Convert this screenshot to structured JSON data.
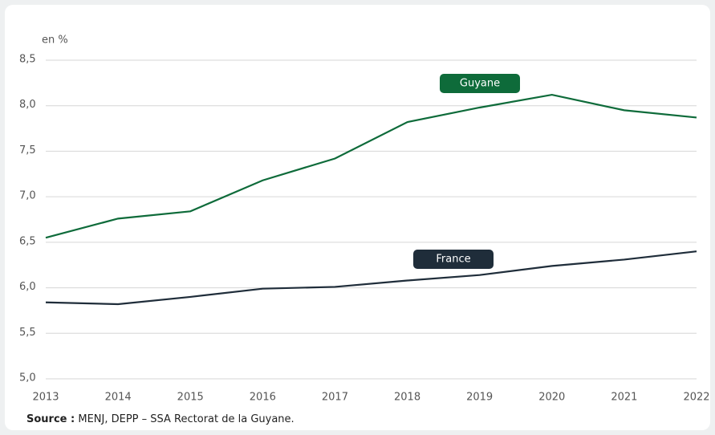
{
  "chart_data": {
    "type": "line",
    "y_axis_label": "en %",
    "x": [
      2013,
      2014,
      2015,
      2016,
      2017,
      2018,
      2019,
      2020,
      2021,
      2022
    ],
    "xlim": [
      2013,
      2022
    ],
    "xticks": [
      2013,
      2014,
      2015,
      2016,
      2017,
      2018,
      2019,
      2020,
      2021,
      2022
    ],
    "ylim": [
      5.0,
      8.5
    ],
    "yticks": [
      {
        "value": 5.0,
        "label": "5,0"
      },
      {
        "value": 5.5,
        "label": "5,5"
      },
      {
        "value": 6.0,
        "label": "6,0"
      },
      {
        "value": 6.5,
        "label": "6,5"
      },
      {
        "value": 7.0,
        "label": "7,0"
      },
      {
        "value": 7.5,
        "label": "7,5"
      },
      {
        "value": 8.0,
        "label": "8,0"
      },
      {
        "value": 8.5,
        "label": "8,5"
      }
    ],
    "grid": true,
    "series": [
      {
        "name": "Guyane",
        "color": "#0e6b3a",
        "values": [
          6.55,
          6.76,
          6.84,
          7.18,
          7.42,
          7.82,
          7.98,
          8.12,
          7.95,
          7.87
        ]
      },
      {
        "name": "France",
        "color": "#1f2d3a",
        "values": [
          5.84,
          5.82,
          5.9,
          5.99,
          6.01,
          6.08,
          6.14,
          6.24,
          6.31,
          6.4
        ]
      }
    ],
    "source_label": "Source :",
    "source": "MENJ, DEPP – SSA Rectorat de la Guyane."
  }
}
